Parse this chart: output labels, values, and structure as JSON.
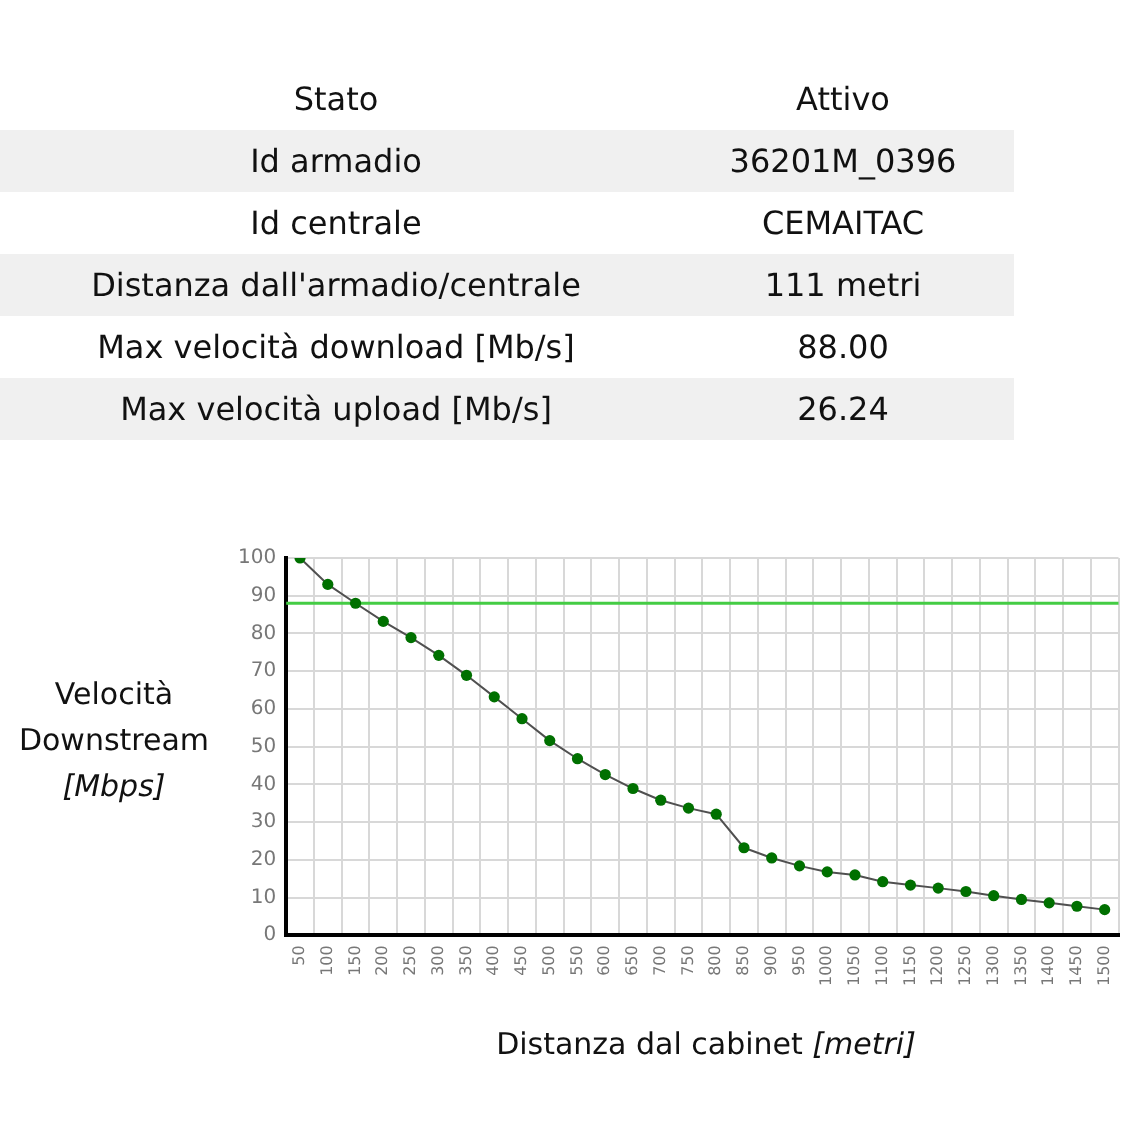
{
  "chart_data": [
    {
      "type": "other",
      "categories": [
        "Stato",
        "Id armadio",
        "Id centrale",
        "Distanza dall'armadio/centrale",
        "Max velocità download [Mb/s]",
        "Max velocità upload [Mb/s]"
      ],
      "value_labels": [
        "Attivo",
        "36201M_0396",
        "CEMAITAC",
        "111 metri",
        "88.00",
        "26.24"
      ]
    },
    {
      "type": "line",
      "xlabel": "Distanza dal cabinet [metri]",
      "ylabel": "Velocità Downstream [Mbps]",
      "categories": [
        "50",
        "100",
        "150",
        "200",
        "250",
        "300",
        "350",
        "400",
        "450",
        "500",
        "550",
        "600",
        "650",
        "700",
        "750",
        "800",
        "850",
        "900",
        "950",
        "1000",
        "1050",
        "1100",
        "1150",
        "1200",
        "1250",
        "1300",
        "1350",
        "1400",
        "1450",
        "1500"
      ],
      "values": [
        100,
        93,
        88,
        83.2,
        78.9,
        74.2,
        68.9,
        63.2,
        57.4,
        51.6,
        46.8,
        42.6,
        38.9,
        35.8,
        33.7,
        32.1,
        23.2,
        20.5,
        18.4,
        16.8,
        16,
        14.2,
        13.3,
        12.5,
        11.6,
        10.5,
        9.5,
        8.6,
        7.7,
        6.8
      ],
      "color": "#007000",
      "marker": "circle",
      "ylim": [
        0,
        100
      ],
      "yticks": [
        0,
        10,
        20,
        30,
        40,
        50,
        60,
        70,
        80,
        90,
        100
      ],
      "grid": true,
      "ref_lines": [
        {
          "axis": "y",
          "value": 88,
          "color": "#44cc44"
        }
      ]
    }
  ]
}
